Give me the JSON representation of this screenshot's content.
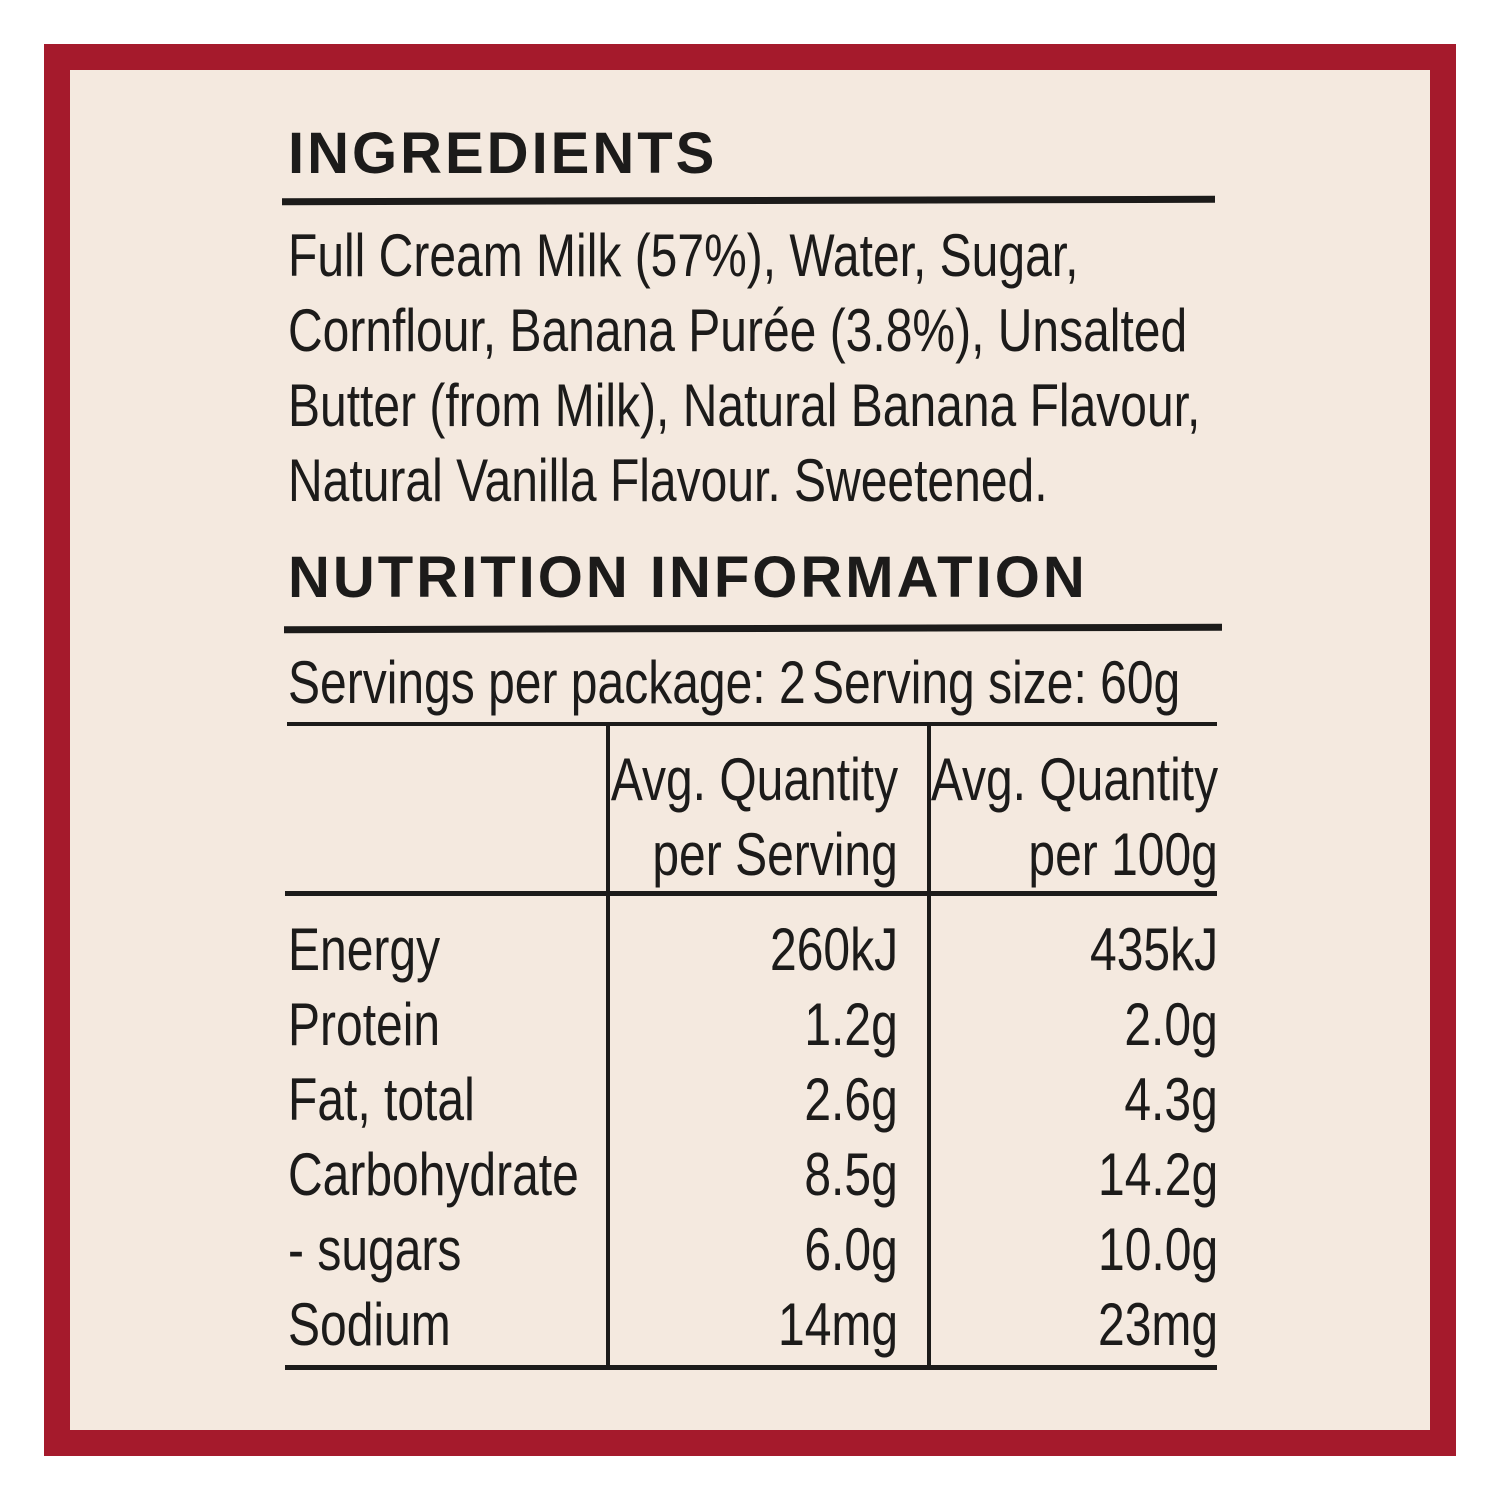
{
  "colors": {
    "border": "#a51a2c",
    "background": "#f4e9df",
    "text": "#1c1b1a"
  },
  "ingredients": {
    "heading": "INGREDIENTS",
    "lines": [
      "Full Cream Milk (57%), Water, Sugar,",
      "Cornflour, Banana Purée (3.8%), Unsalted",
      "Butter (from Milk), Natural Banana Flavour,",
      "Natural Vanilla Flavour. Sweetened."
    ]
  },
  "nutrition": {
    "heading": "NUTRITION INFORMATION",
    "servings_per_package": "Servings per package: 2",
    "serving_size": "Serving size: 60g",
    "columns": [
      {
        "line1": "Avg. Quantity",
        "line2": "per Serving"
      },
      {
        "line1": "Avg. Quantity",
        "line2": "per 100g"
      }
    ],
    "rows": [
      {
        "name": "Energy",
        "per_serving": "260kJ",
        "per_100g": "435kJ"
      },
      {
        "name": "Protein",
        "per_serving": "1.2g",
        "per_100g": "2.0g"
      },
      {
        "name": "Fat, total",
        "per_serving": "2.6g",
        "per_100g": "4.3g"
      },
      {
        "name": "Carbohydrate",
        "per_serving": "8.5g",
        "per_100g": "14.2g"
      },
      {
        "name": "- sugars",
        "per_serving": "6.0g",
        "per_100g": "10.0g"
      },
      {
        "name": "Sodium",
        "per_serving": "14mg",
        "per_100g": "23mg"
      }
    ]
  }
}
